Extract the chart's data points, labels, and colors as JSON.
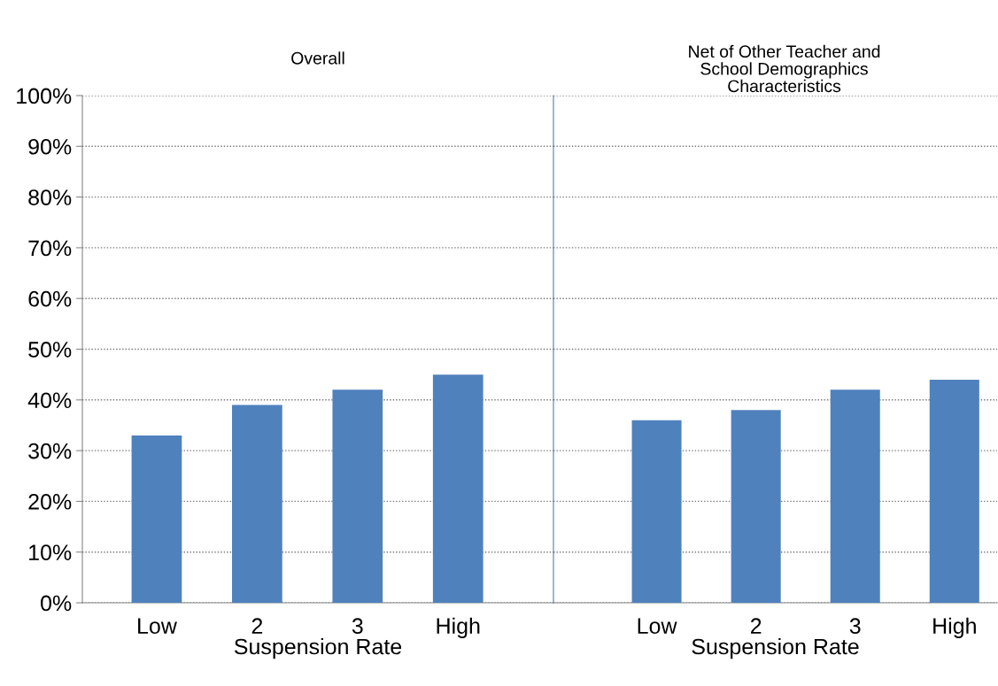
{
  "chart_data": [
    {
      "type": "bar",
      "title": "Overall",
      "xlabel": "Suspension Rate",
      "categories": [
        "Low",
        "2",
        "3",
        "High"
      ],
      "values": [
        33,
        39,
        42,
        45
      ],
      "color": "#4f81bd",
      "ylim": [
        0,
        100
      ],
      "yticks": [
        {
          "value": 0,
          "label": "0%"
        },
        {
          "value": 10,
          "label": "10%"
        },
        {
          "value": 20,
          "label": "20%"
        },
        {
          "value": 30,
          "label": "30%"
        },
        {
          "value": 40,
          "label": "40%"
        },
        {
          "value": 50,
          "label": "50%"
        },
        {
          "value": 60,
          "label": "60%"
        },
        {
          "value": 70,
          "label": "70%"
        },
        {
          "value": 80,
          "label": "80%"
        },
        {
          "value": 90,
          "label": "90%"
        },
        {
          "value": 100,
          "label": "100%"
        }
      ],
      "grid": "y"
    },
    {
      "type": "bar",
      "title": "Net of Other Teacher and\nSchool Demographics\nCharacteristics",
      "xlabel": "Suspension Rate",
      "categories": [
        "Low",
        "2",
        "3",
        "High"
      ],
      "values": [
        36,
        38,
        42,
        44
      ],
      "color": "#4f81bd",
      "ylim": [
        0,
        100
      ],
      "yticks": [
        0,
        10,
        20,
        30,
        40,
        50,
        60,
        70,
        80,
        90,
        100
      ],
      "grid": "y",
      "tick_labels": "x"
    }
  ]
}
